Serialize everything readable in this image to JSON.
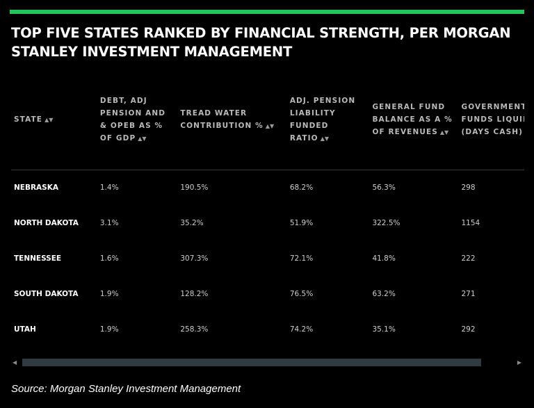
{
  "title": "TOP FIVE STATES RANKED BY FINANCIAL STRENGTH, PER MORGAN STANLEY INVESTMENT MANAGEMENT",
  "accent_color": "#21c45d",
  "sort_icon": "sort-icon",
  "sort_glyph": "▲▼",
  "table": {
    "headers": [
      "STATE",
      "DEBT, ADJ PENSION AND & OPEB AS % OF GDP",
      "TREAD WATER CONTRIBUTION %",
      "ADJ. PENSION LIABILITY FUNDED RATIO",
      "GENERAL FUND BALANCE AS A % OF REVENUES",
      "GOVERNMENTAL FUNDS LIQUIDITY (DAYS CASH)"
    ],
    "rows": [
      [
        "NEBRASKA",
        "1.4%",
        "190.5%",
        "68.2%",
        "56.3%",
        "298"
      ],
      [
        "NORTH DAKOTA",
        "3.1%",
        "35.2%",
        "51.9%",
        "322.5%",
        "1154"
      ],
      [
        "TENNESSEE",
        "1.6%",
        "307.3%",
        "72.1%",
        "41.8%",
        "222"
      ],
      [
        "SOUTH DAKOTA",
        "1.9%",
        "128.2%",
        "76.5%",
        "63.2%",
        "271"
      ],
      [
        "UTAH",
        "1.9%",
        "258.3%",
        "74.2%",
        "35.1%",
        "292"
      ]
    ]
  },
  "scrollbar": {
    "left_arrow": "◀",
    "right_arrow": "▶"
  },
  "source": "Source: Morgan Stanley Investment Management"
}
